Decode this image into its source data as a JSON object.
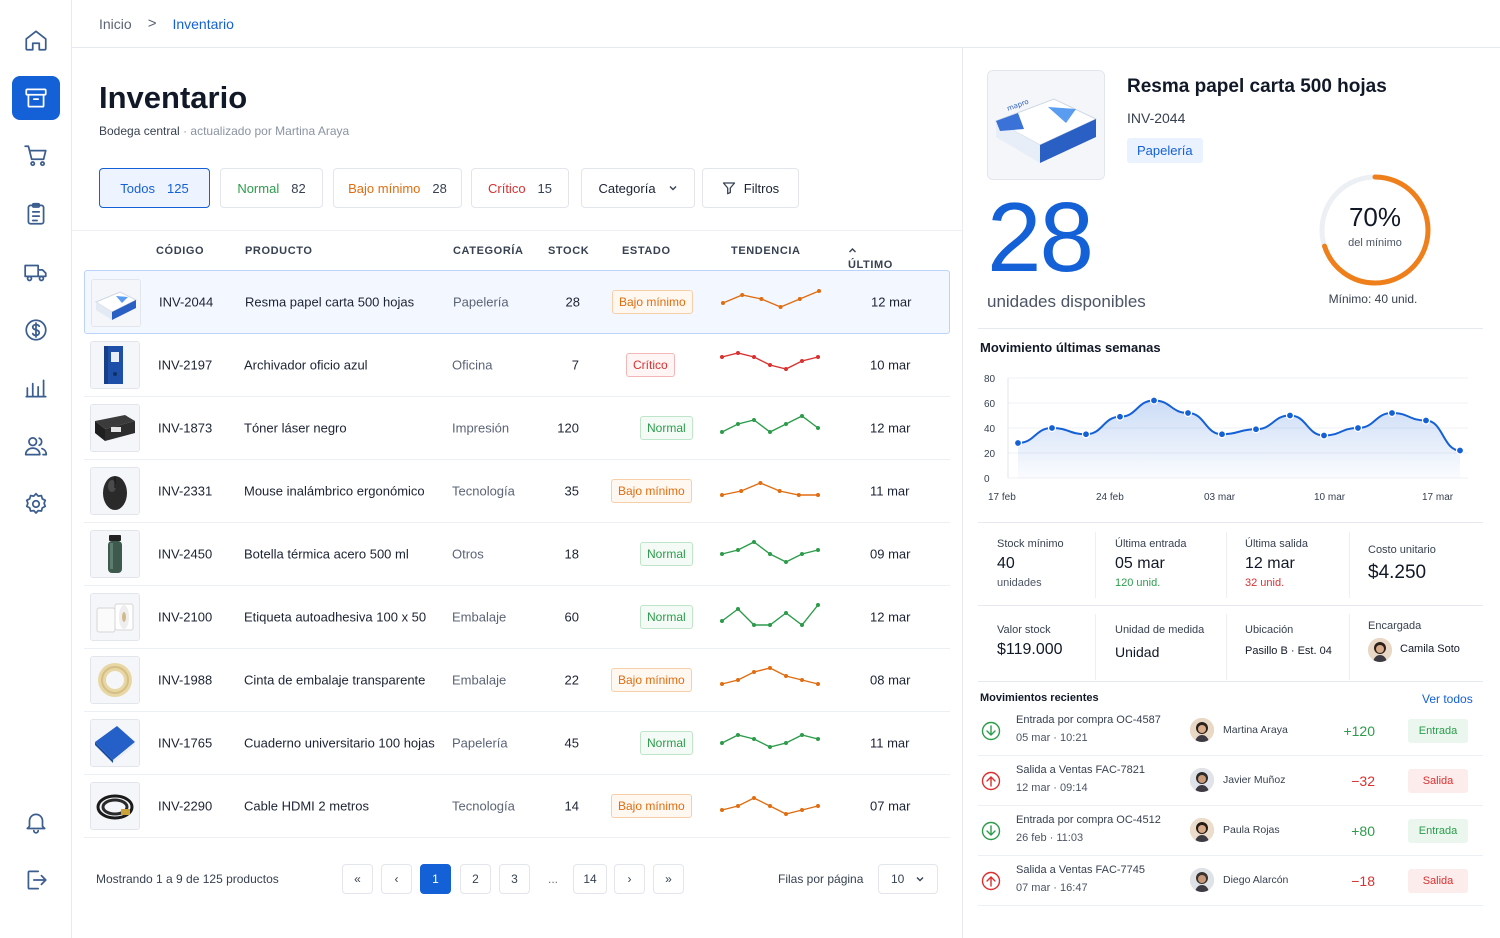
{
  "breadcrumb": {
    "home": "Inicio",
    "separator": ">",
    "current": "Inventario"
  },
  "page": {
    "title": "Inventario",
    "warehouse": "Bodega central",
    "dot": "·",
    "updated": "actualizado por Martina Araya"
  },
  "filters": [
    {
      "label": "Todos",
      "count": "125"
    },
    {
      "label": "Normal",
      "count": "82"
    },
    {
      "label": "Bajo mínimo",
      "count": "28"
    },
    {
      "label": "Crítico",
      "count": "15"
    }
  ],
  "category_dropdown": "Categoría",
  "filters_button": "Filtros",
  "columns": {
    "code": "CÓDIGO",
    "product": "PRODUCTO",
    "category": "CATEGORÍA",
    "stock": "STOCK",
    "status": "ESTADO",
    "trend": "TENDENCIA",
    "last": "ÚLTIMO MOV."
  },
  "colors": {
    "accent": "#1460d6",
    "normal": "#2c9c4b",
    "low": "#e06d10",
    "critical": "#d93030"
  },
  "rows": [
    {
      "code": "INV-2044",
      "product": "Resma papel carta 500 hojas",
      "category": "Papelería",
      "stock": "28",
      "status": "Bajo mínimo",
      "kind": "bajo",
      "date": "12 mar",
      "trend": [
        3,
        5,
        4,
        2,
        4,
        6
      ],
      "icon": "paper-ream"
    },
    {
      "code": "INV-2197",
      "product": "Archivador oficio azul",
      "category": "Oficina",
      "stock": "7",
      "status": "Crítico",
      "kind": "crit",
      "date": "10 mar",
      "trend": [
        5,
        6,
        5,
        3,
        2,
        4,
        5
      ],
      "icon": "binder"
    },
    {
      "code": "INV-1873",
      "product": "Tóner láser negro",
      "category": "Impresión",
      "stock": "120",
      "status": "Normal",
      "kind": "normal",
      "date": "12 mar",
      "trend": [
        2,
        4,
        5,
        2,
        4,
        6,
        3
      ],
      "icon": "toner"
    },
    {
      "code": "INV-2331",
      "product": "Mouse inalámbrico ergonómico",
      "category": "Tecnología",
      "stock": "35",
      "status": "Bajo mínimo",
      "kind": "bajo",
      "date": "11 mar",
      "trend": [
        2,
        3,
        5,
        3,
        2,
        2
      ],
      "icon": "mouse"
    },
    {
      "code": "INV-2450",
      "product": "Botella térmica acero 500 ml",
      "category": "Otros",
      "stock": "18",
      "status": "Normal",
      "kind": "normal",
      "date": "09 mar",
      "trend": [
        3,
        4,
        6,
        3,
        1,
        3,
        4
      ],
      "icon": "bottle"
    },
    {
      "code": "INV-2100",
      "product": "Etiqueta autoadhesiva 100 x 50",
      "category": "Embalaje",
      "stock": "60",
      "status": "Normal",
      "kind": "normal",
      "date": "12 mar",
      "trend": [
        2,
        5,
        1,
        1,
        4,
        1,
        6
      ],
      "icon": "label-roll"
    },
    {
      "code": "INV-1988",
      "product": "Cinta de embalaje transparente",
      "category": "Embalaje",
      "stock": "22",
      "status": "Bajo mínimo",
      "kind": "bajo",
      "date": "08 mar",
      "trend": [
        2,
        3,
        5,
        6,
        4,
        3,
        2
      ],
      "icon": "tape"
    },
    {
      "code": "INV-1765",
      "product": "Cuaderno universitario 100 hojas",
      "category": "Papelería",
      "stock": "45",
      "status": "Normal",
      "kind": "normal",
      "date": "11 mar",
      "trend": [
        3,
        5,
        4,
        2,
        3,
        5,
        4
      ],
      "icon": "notebook"
    },
    {
      "code": "INV-2290",
      "product": "Cable HDMI 2 metros",
      "category": "Tecnología",
      "stock": "14",
      "status": "Bajo mínimo",
      "kind": "bajo",
      "date": "07 mar",
      "trend": [
        2,
        3,
        5,
        3,
        1,
        2,
        3
      ],
      "icon": "hdmi-cable"
    }
  ],
  "pagination": {
    "showing": "Mostrando 1 a 9 de 125 productos",
    "first": "«",
    "prev": "‹",
    "pages": [
      "1",
      "2",
      "3"
    ],
    "ellipsis": "...",
    "last_page": "14",
    "next": "›",
    "last": "»",
    "rows_label": "Filas por página",
    "rows_value": "10"
  },
  "detail": {
    "title": "Resma papel carta 500 hojas",
    "code": "INV-2044",
    "tag": "Papelería",
    "available": "28",
    "available_label": "unidades disponibles",
    "percent_label": "70%",
    "percent": 0.7,
    "percent_sub": "del mínimo",
    "minimum": "Mínimo: 40 unid."
  },
  "chart_data": {
    "type": "area",
    "title": "Movimiento últimas semanas",
    "y_ticks": [
      "80",
      "60",
      "40",
      "20",
      "0"
    ],
    "x_ticks": [
      "17 feb",
      "24 feb",
      "03 mar",
      "10 mar",
      "17 mar"
    ],
    "ylim": [
      0,
      80
    ],
    "values": [
      28,
      40,
      35,
      49,
      62,
      52,
      35,
      39,
      50,
      34,
      40,
      52,
      46,
      22
    ],
    "grid": true,
    "color": "#1460d6"
  },
  "stats": [
    {
      "label": "Stock mínimo",
      "value": "40",
      "sub": "unidades"
    },
    {
      "label": "Última entrada",
      "value": "05 mar",
      "sub": "120 unid."
    },
    {
      "label": "Última salida",
      "value": "12 mar",
      "sub": "32 unid."
    },
    {
      "label": "Costo unitario",
      "value": "$4.250"
    },
    {
      "label": "Valor stock",
      "value": "$119.000"
    },
    {
      "label": "Unidad de medida",
      "value": "Unidad"
    },
    {
      "label": "Ubicación",
      "value": "Pasillo B · Est. 04"
    },
    {
      "label": "Encargada",
      "value": "Camila Soto"
    }
  ],
  "movements": {
    "title": "Movimientos recientes",
    "link": "Ver todos",
    "items": [
      {
        "desc": "Entrada por compra OC-4587",
        "date": "05 mar",
        "time": "10:21",
        "user": "Martina Araya",
        "qty": "+120",
        "type": "Entrada",
        "dir": "in"
      },
      {
        "desc": "Salida a Ventas FAC-7821",
        "date": "12 mar",
        "time": "09:14",
        "user": "Javier Muñoz",
        "qty": "−32",
        "type": "Salida",
        "dir": "out"
      },
      {
        "desc": "Entrada por compra OC-4512",
        "date": "26 feb",
        "time": "11:03",
        "user": "Paula Rojas",
        "qty": "+80",
        "type": "Entrada",
        "dir": "in"
      },
      {
        "desc": "Salida a Ventas FAC-7745",
        "date": "07 mar",
        "time": "16:47",
        "user": "Diego Alarcón",
        "qty": "−18",
        "type": "Salida",
        "dir": "out"
      }
    ]
  },
  "sidebar": [
    "home-icon",
    "inventory-box-icon",
    "cart-icon",
    "clipboard-icon",
    "truck-icon",
    "dollar-icon",
    "bar-chart-icon",
    "users-icon",
    "gear-icon",
    "bell-icon",
    "logout-icon"
  ]
}
